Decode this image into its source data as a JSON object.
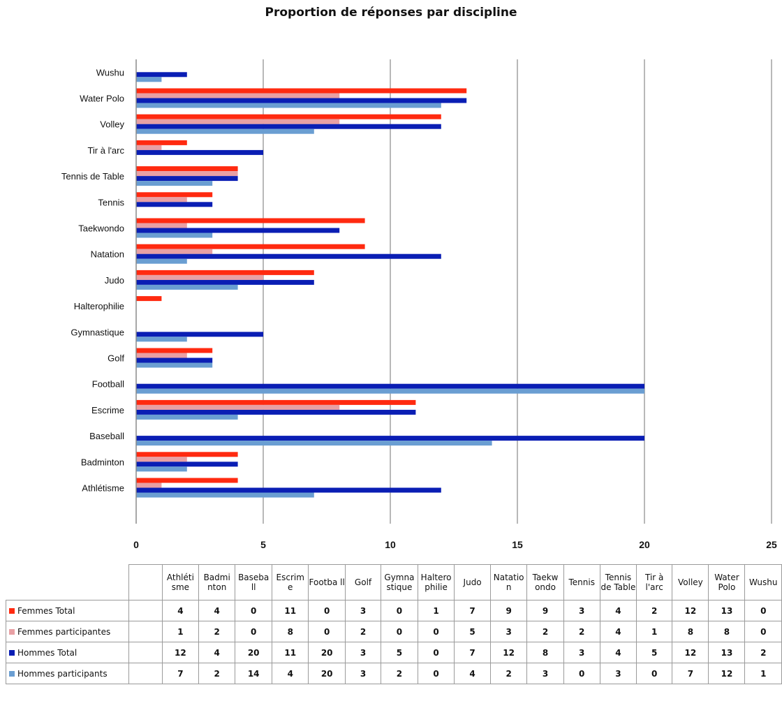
{
  "chart_data": {
    "type": "bar",
    "orientation": "horizontal",
    "title": "Proportion de réponses par discipline",
    "categories": [
      "Athlétisme",
      "Badminton",
      "Baseball",
      "Escrime",
      "Football",
      "Golf",
      "Gymnastique",
      "Halterophilie",
      "Judo",
      "Natation",
      "Taekwondo",
      "Tennis",
      "Tennis de Table",
      "Tir à l'arc",
      "Volley",
      "Water Polo",
      "Wushu"
    ],
    "table_headers": [
      "Athléti sme",
      "Badmi nton",
      "Baseba ll",
      "Escrim e",
      "Footba ll",
      "Golf",
      "Gymna stique",
      "Haltero philie",
      "Judo",
      "Natatio n",
      "Taekw ondo",
      "Tennis",
      "Tennis de Table",
      "Tir à l'arc",
      "Volley",
      "Water Polo",
      "Wushu"
    ],
    "series": [
      {
        "name": "Femmes Total",
        "color": "#ff2a10",
        "values": [
          4,
          4,
          0,
          11,
          0,
          3,
          0,
          1,
          7,
          9,
          9,
          3,
          4,
          2,
          12,
          13,
          0
        ]
      },
      {
        "name": "Femmes participantes",
        "color": "#e8a0a4",
        "values": [
          1,
          2,
          0,
          8,
          0,
          2,
          0,
          0,
          5,
          3,
          2,
          2,
          4,
          1,
          8,
          8,
          0
        ]
      },
      {
        "name": "Hommes Total",
        "color": "#0a1eb4",
        "values": [
          12,
          4,
          20,
          11,
          20,
          3,
          5,
          0,
          7,
          12,
          8,
          3,
          4,
          5,
          12,
          13,
          2
        ]
      },
      {
        "name": "Hommes participants",
        "color": "#6a9ed2",
        "values": [
          7,
          2,
          14,
          4,
          20,
          3,
          2,
          0,
          4,
          2,
          3,
          0,
          3,
          0,
          7,
          12,
          1
        ]
      }
    ],
    "xlim": [
      0,
      25
    ],
    "xticks": [
      0,
      5,
      10,
      15,
      20,
      25
    ],
    "grid": true,
    "legend": "table-bottom"
  }
}
